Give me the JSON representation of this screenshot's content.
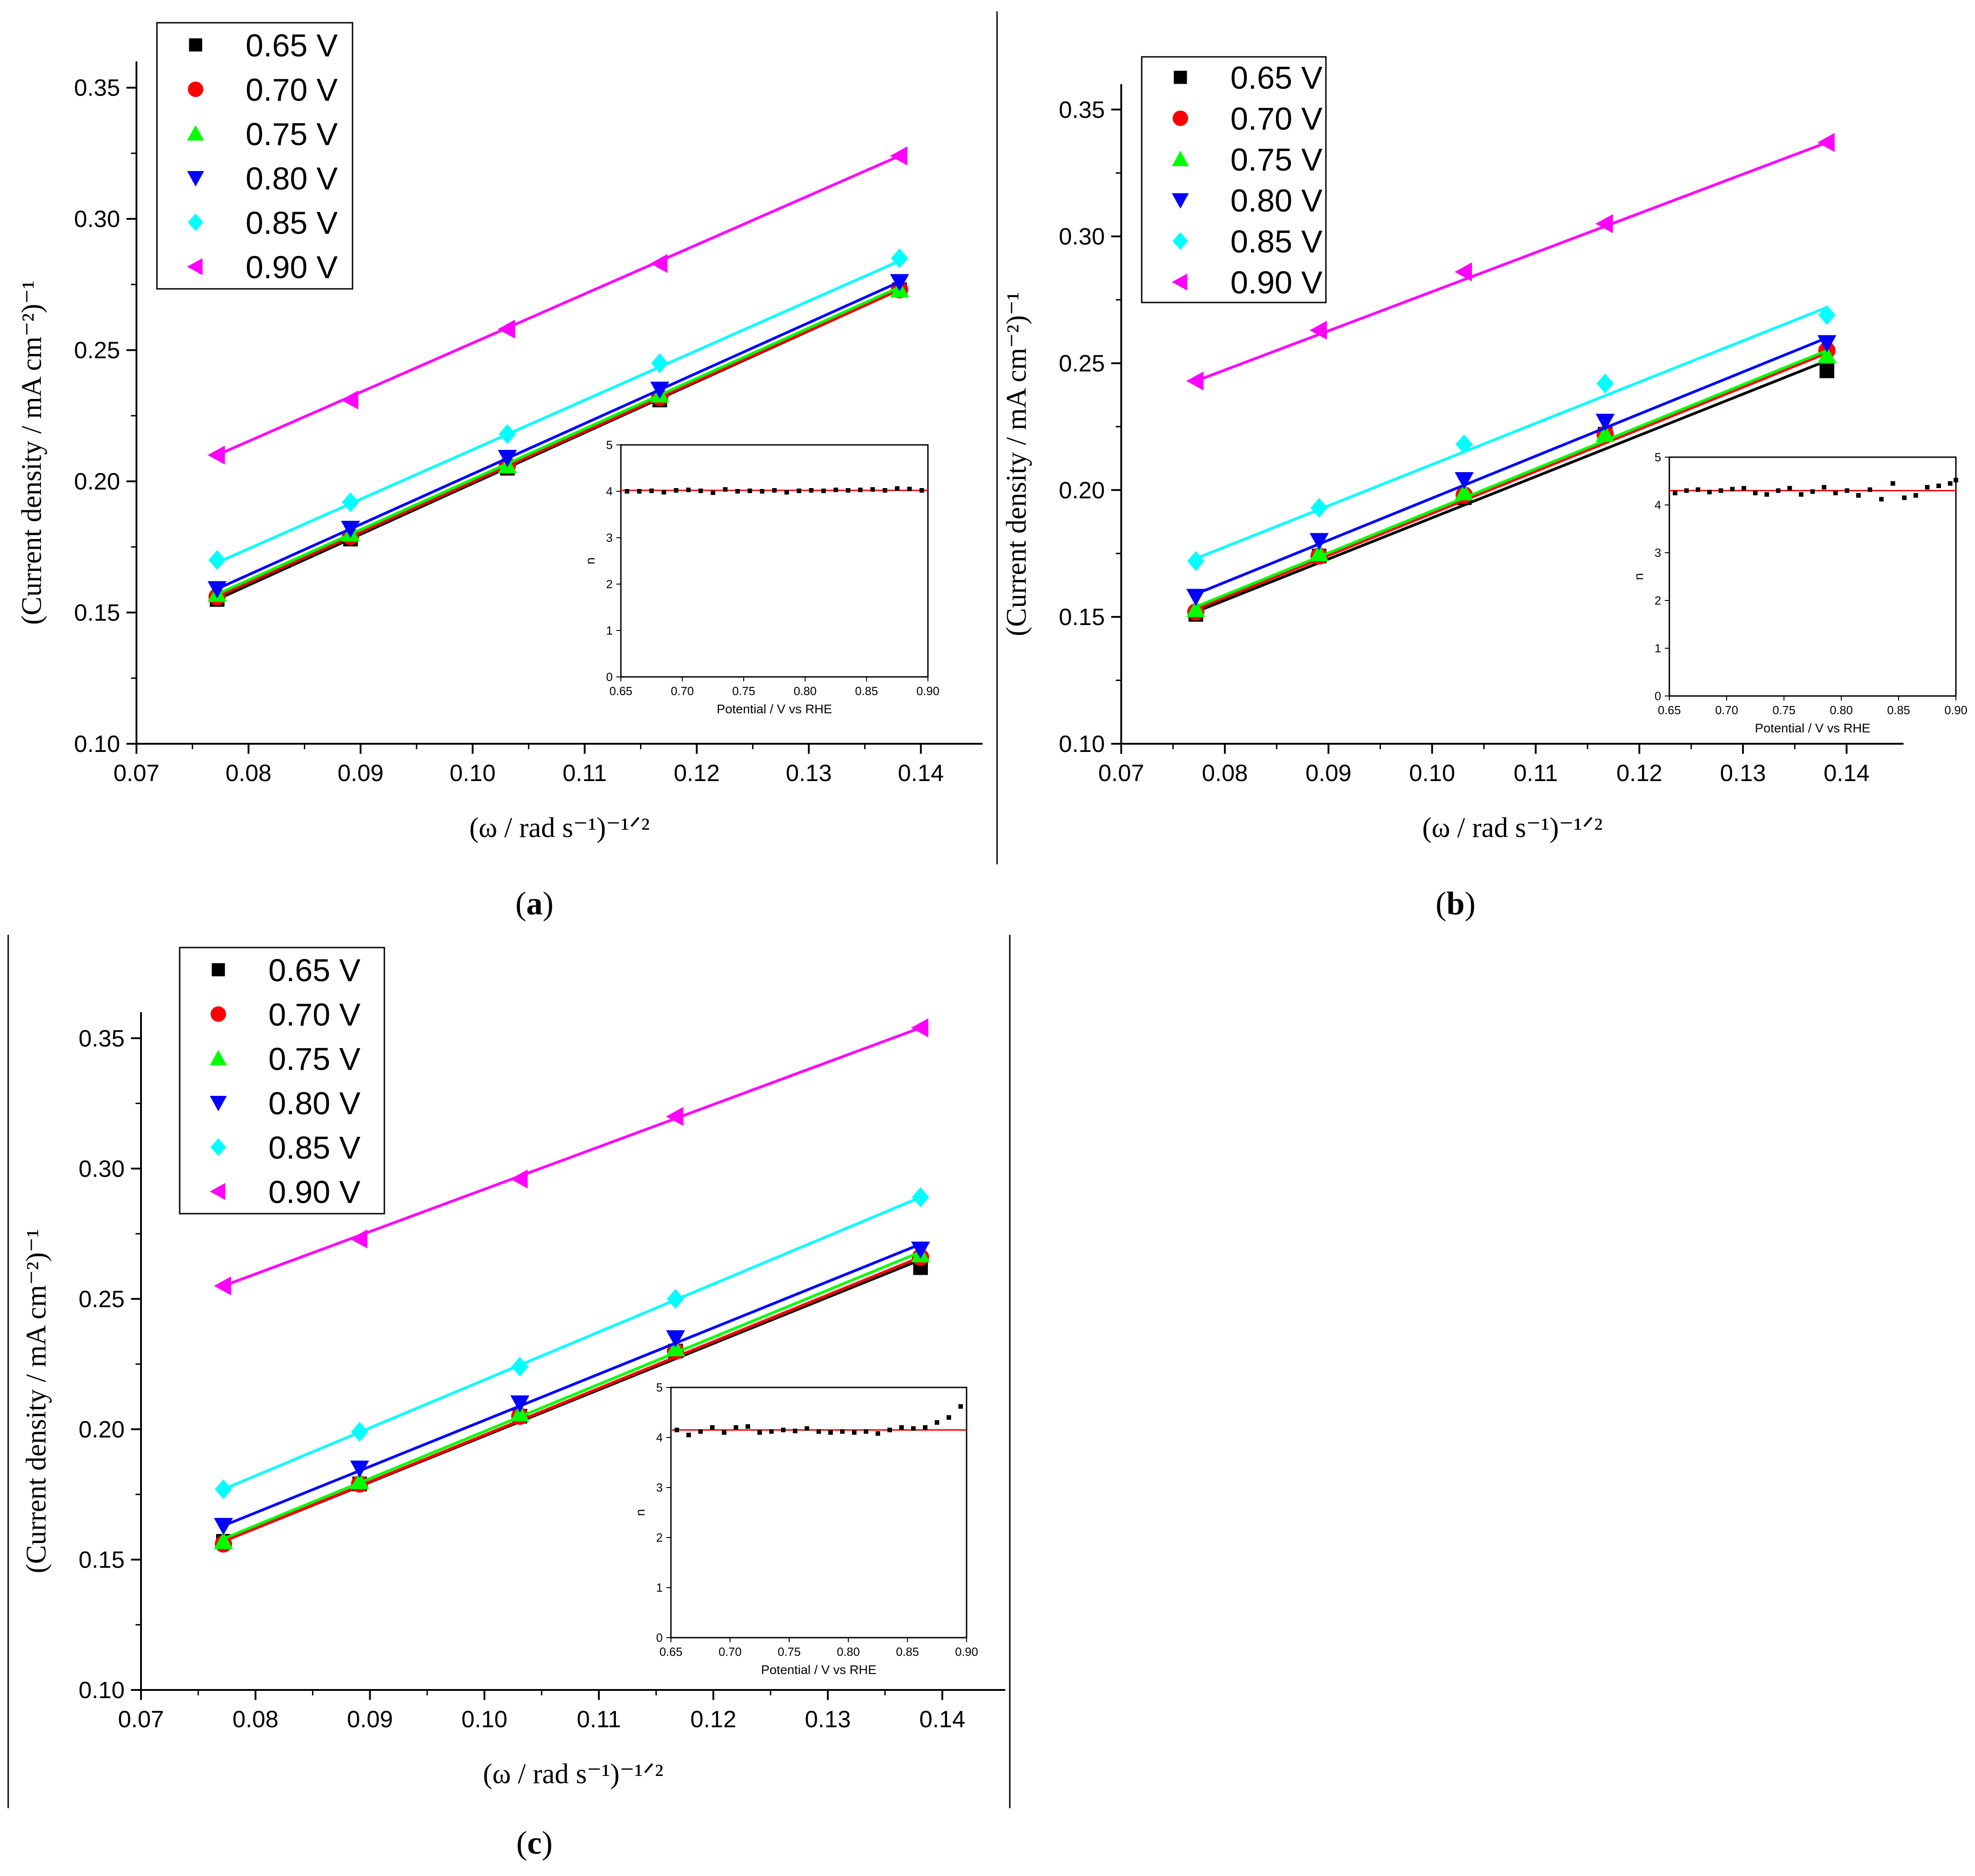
{
  "colors": {
    "s065": "#000000",
    "s070": "#ff0000",
    "s075": "#00ff00",
    "s080": "#0000ff",
    "s085": "#00ffff",
    "s090": "#ff00ff",
    "inset_fit": "#ff0000",
    "inset_points": "#000000"
  },
  "chart_data": [
    {
      "type": "scatter",
      "panel_open": "(",
      "panel": "a",
      "panel_close": ")",
      "xlabel": "(ω / rad s⁻¹)⁻¹ᐟ²",
      "ylabel": "(Current density / mA cm⁻²)⁻¹",
      "xlim": [
        0.07,
        0.1455
      ],
      "ylim": [
        0.1,
        0.36
      ],
      "xticks": [
        "0.07",
        "0.08",
        "0.09",
        "0.10",
        "0.11",
        "0.12",
        "0.13",
        "0.14"
      ],
      "yticks": [
        "0.10",
        "0.15",
        "0.20",
        "0.25",
        "0.30",
        "0.35"
      ],
      "legend_position": "top-left",
      "x": [
        0.0772,
        0.0891,
        0.1031,
        0.1167,
        0.1381
      ],
      "series": [
        {
          "name": "0.65 V",
          "marker": "square",
          "color": "s065",
          "values": [
            0.155,
            0.178,
            0.205,
            0.231,
            0.273
          ],
          "fit": [
            0.155,
            0.273
          ]
        },
        {
          "name": "0.70 V",
          "marker": "circle",
          "color": "s070",
          "values": [
            0.156,
            0.179,
            0.206,
            0.232,
            0.273
          ],
          "fit": [
            0.156,
            0.273
          ]
        },
        {
          "name": "0.75 V",
          "marker": "triangle-up",
          "color": "s075",
          "values": [
            0.157,
            0.18,
            0.206,
            0.233,
            0.273
          ],
          "fit": [
            0.157,
            0.274
          ]
        },
        {
          "name": "0.80 V",
          "marker": "triangle-down",
          "color": "s080",
          "values": [
            0.159,
            0.182,
            0.209,
            0.235,
            0.276
          ],
          "fit": [
            0.159,
            0.276
          ]
        },
        {
          "name": "0.85 V",
          "marker": "diamond",
          "color": "s085",
          "values": [
            0.17,
            0.192,
            0.218,
            0.245,
            0.285
          ],
          "fit": [
            0.169,
            0.284
          ]
        },
        {
          "name": "0.90 V",
          "marker": "triangle-left",
          "color": "s090",
          "values": [
            0.21,
            0.231,
            0.258,
            0.283,
            0.324
          ],
          "fit": [
            0.21,
            0.324
          ]
        }
      ],
      "inset": {
        "type": "scatter",
        "xlabel": "Potential / V vs RHE",
        "ylabel": "n",
        "xlim": [
          0.65,
          0.9
        ],
        "ylim": [
          0,
          5
        ],
        "xticks": [
          "0.65",
          "0.70",
          "0.75",
          "0.80",
          "0.85",
          "0.90"
        ],
        "yticks": [
          "0",
          "1",
          "2",
          "3",
          "4",
          "5"
        ],
        "fit_value": 4.02,
        "x": [
          0.655,
          0.665,
          0.675,
          0.685,
          0.695,
          0.705,
          0.715,
          0.725,
          0.735,
          0.745,
          0.755,
          0.765,
          0.775,
          0.785,
          0.795,
          0.805,
          0.815,
          0.825,
          0.835,
          0.845,
          0.855,
          0.865,
          0.875,
          0.885,
          0.895
        ],
        "values": [
          4.0,
          4.0,
          4.01,
          3.98,
          4.02,
          4.03,
          4.01,
          3.97,
          4.04,
          4.0,
          4.01,
          4.0,
          4.02,
          3.98,
          4.01,
          4.02,
          4.01,
          4.03,
          4.02,
          4.03,
          4.04,
          4.02,
          4.06,
          4.05,
          4.02
        ]
      }
    },
    {
      "type": "scatter",
      "panel_open": "(",
      "panel": "b",
      "panel_close": ")",
      "xlabel": "(ω / rad s⁻¹)⁻¹ᐟ²",
      "ylabel": "(Current density / mA cm⁻²)⁻¹",
      "xlim": [
        0.07,
        0.1455
      ],
      "ylim": [
        0.1,
        0.36
      ],
      "xticks": [
        "0.07",
        "0.08",
        "0.09",
        "0.10",
        "0.11",
        "0.12",
        "0.13",
        "0.14"
      ],
      "yticks": [
        "0.10",
        "0.15",
        "0.20",
        "0.25",
        "0.30",
        "0.35"
      ],
      "legend_position": "top-left",
      "x": [
        0.0772,
        0.0891,
        0.1031,
        0.1167,
        0.1381
      ],
      "series": [
        {
          "name": "0.65 V",
          "marker": "square",
          "color": "s065",
          "values": [
            0.151,
            0.174,
            0.197,
            0.222,
            0.247
          ],
          "fit": [
            0.152,
            0.251
          ]
        },
        {
          "name": "0.70 V",
          "marker": "circle",
          "color": "s070",
          "values": [
            0.152,
            0.174,
            0.198,
            0.222,
            0.255
          ],
          "fit": [
            0.153,
            0.254
          ]
        },
        {
          "name": "0.75 V",
          "marker": "triangle-up",
          "color": "s075",
          "values": [
            0.153,
            0.175,
            0.199,
            0.222,
            0.253
          ],
          "fit": [
            0.154,
            0.255
          ]
        },
        {
          "name": "0.80 V",
          "marker": "triangle-down",
          "color": "s080",
          "values": [
            0.158,
            0.18,
            0.204,
            0.227,
            0.258
          ],
          "fit": [
            0.159,
            0.26
          ]
        },
        {
          "name": "0.85 V",
          "marker": "diamond",
          "color": "s085",
          "values": [
            0.172,
            0.193,
            0.218,
            0.242,
            0.269
          ],
          "fit": [
            0.173,
            0.272
          ]
        },
        {
          "name": "0.90 V",
          "marker": "triangle-left",
          "color": "s090",
          "values": [
            0.243,
            0.263,
            0.286,
            0.305,
            0.337
          ],
          "fit": [
            0.243,
            0.337
          ]
        }
      ],
      "inset": {
        "type": "scatter",
        "xlabel": "Potential / V vs RHE",
        "ylabel": "n",
        "xlim": [
          0.65,
          0.9
        ],
        "ylim": [
          0,
          5
        ],
        "xticks": [
          "0.65",
          "0.70",
          "0.75",
          "0.80",
          "0.85",
          "0.90"
        ],
        "yticks": [
          "0",
          "1",
          "2",
          "3",
          "4",
          "5"
        ],
        "fit_value": 4.3,
        "x": [
          0.655,
          0.665,
          0.675,
          0.685,
          0.695,
          0.705,
          0.715,
          0.725,
          0.735,
          0.745,
          0.755,
          0.765,
          0.775,
          0.785,
          0.795,
          0.805,
          0.815,
          0.825,
          0.835,
          0.845,
          0.855,
          0.865,
          0.875,
          0.885,
          0.895,
          0.9
        ],
        "values": [
          4.25,
          4.3,
          4.32,
          4.27,
          4.3,
          4.33,
          4.35,
          4.25,
          4.22,
          4.3,
          4.35,
          4.22,
          4.28,
          4.37,
          4.25,
          4.3,
          4.2,
          4.32,
          4.12,
          4.45,
          4.15,
          4.2,
          4.37,
          4.4,
          4.45,
          4.52
        ]
      }
    },
    {
      "type": "scatter",
      "panel_open": "(",
      "panel": "c",
      "panel_close": ")",
      "xlabel": "(ω / rad s⁻¹)⁻¹ᐟ²",
      "ylabel": "(Current density / mA cm⁻²)⁻¹",
      "xlim": [
        0.07,
        0.1455
      ],
      "ylim": [
        0.1,
        0.36
      ],
      "xticks": [
        "0.07",
        "0.08",
        "0.09",
        "0.10",
        "0.11",
        "0.12",
        "0.13",
        "0.14"
      ],
      "yticks": [
        "0.10",
        "0.15",
        "0.20",
        "0.25",
        "0.30",
        "0.35"
      ],
      "legend_position": "top-left",
      "x": [
        0.0772,
        0.0891,
        0.1031,
        0.1167,
        0.1381
      ],
      "series": [
        {
          "name": "0.65 V",
          "marker": "square",
          "color": "s065",
          "values": [
            0.157,
            0.179,
            0.205,
            0.23,
            0.262
          ],
          "fit": [
            0.157,
            0.265
          ]
        },
        {
          "name": "0.70 V",
          "marker": "circle",
          "color": "s070",
          "values": [
            0.156,
            0.179,
            0.205,
            0.23,
            0.266
          ],
          "fit": [
            0.157,
            0.266
          ]
        },
        {
          "name": "0.75 V",
          "marker": "triangle-up",
          "color": "s075",
          "values": [
            0.157,
            0.18,
            0.206,
            0.231,
            0.267
          ],
          "fit": [
            0.158,
            0.268
          ]
        },
        {
          "name": "0.80 V",
          "marker": "triangle-down",
          "color": "s080",
          "values": [
            0.163,
            0.185,
            0.21,
            0.235,
            0.269
          ],
          "fit": [
            0.163,
            0.271
          ]
        },
        {
          "name": "0.85 V",
          "marker": "diamond",
          "color": "s085",
          "values": [
            0.177,
            0.199,
            0.224,
            0.25,
            0.289
          ],
          "fit": [
            0.177,
            0.289
          ]
        },
        {
          "name": "0.90 V",
          "marker": "triangle-left",
          "color": "s090",
          "values": [
            0.255,
            0.273,
            0.296,
            0.32,
            0.354
          ],
          "fit": [
            0.255,
            0.354
          ]
        }
      ],
      "inset": {
        "type": "scatter",
        "xlabel": "Potential / V vs RHE",
        "ylabel": "n",
        "xlim": [
          0.65,
          0.9
        ],
        "ylim": [
          0,
          5
        ],
        "xticks": [
          "0.65",
          "0.70",
          "0.75",
          "0.80",
          "0.85",
          "0.90"
        ],
        "yticks": [
          "0",
          "1",
          "2",
          "3",
          "4",
          "5"
        ],
        "fit_value": 4.15,
        "x": [
          0.655,
          0.665,
          0.675,
          0.685,
          0.695,
          0.705,
          0.715,
          0.725,
          0.735,
          0.745,
          0.755,
          0.765,
          0.775,
          0.785,
          0.795,
          0.805,
          0.815,
          0.825,
          0.835,
          0.845,
          0.855,
          0.865,
          0.875,
          0.885,
          0.895
        ],
        "values": [
          4.15,
          4.05,
          4.12,
          4.2,
          4.1,
          4.2,
          4.22,
          4.1,
          4.12,
          4.15,
          4.13,
          4.18,
          4.12,
          4.1,
          4.12,
          4.1,
          4.12,
          4.08,
          4.15,
          4.2,
          4.18,
          4.2,
          4.3,
          4.4,
          4.62
        ]
      }
    }
  ]
}
